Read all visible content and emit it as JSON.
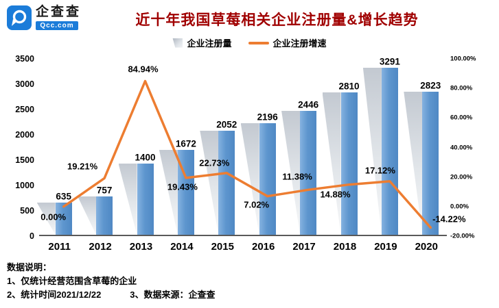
{
  "logo": {
    "name": "企查查",
    "domain": "Qcc.com"
  },
  "title": "近十年我国草莓相关企业注册量&增长趋势",
  "legend": {
    "items": [
      {
        "label": "企业注册量"
      },
      {
        "label": "企业注册增速"
      }
    ]
  },
  "chart_data": {
    "type": "bar",
    "secondary_type": "line",
    "title": "近十年我国草莓相关企业注册量&增长趋势",
    "categories": [
      "2011",
      "2012",
      "2013",
      "2014",
      "2015",
      "2016",
      "2017",
      "2018",
      "2019",
      "2020"
    ],
    "series": [
      {
        "name": "企业注册量",
        "type": "bar",
        "axis": "left",
        "values": [
          635,
          757,
          1400,
          1672,
          2052,
          2196,
          2446,
          2810,
          3291,
          2823
        ]
      },
      {
        "name": "企业注册增速",
        "type": "line",
        "axis": "right",
        "values_percent": [
          0.0,
          19.21,
          84.94,
          19.43,
          22.73,
          7.02,
          11.38,
          14.88,
          17.12,
          -14.22
        ],
        "labels": [
          "0.00%",
          "19.21%",
          "84.94%",
          "19.43%",
          "22.73%",
          "7.02%",
          "11.38%",
          "14.88%",
          "17.12%",
          "-14.22%"
        ]
      }
    ],
    "left_axis": {
      "min": 0,
      "max": 3500,
      "ticks": [
        "3500",
        "3000",
        "2500",
        "2000",
        "1500",
        "1000",
        "500",
        "0"
      ]
    },
    "right_axis": {
      "min": -20,
      "max": 100,
      "ticks": [
        "100.00%",
        "80.00%",
        "60.00%",
        "40.00%",
        "20.00%",
        "0.00%",
        "-20.00%"
      ]
    },
    "grid": false,
    "legend_position": "top"
  },
  "footer": {
    "heading": "数据说明：",
    "line1": "1、仅统计经营范围含草莓的企业",
    "line2": "2、统计时间2021/12/22",
    "line3": "3、数据来源：企查查"
  },
  "colors": {
    "bar": "#5E96CE",
    "wedge": "#d9dde2",
    "line": "#ED7D31",
    "title": "#A00000",
    "logo": "#1B7CD9"
  }
}
